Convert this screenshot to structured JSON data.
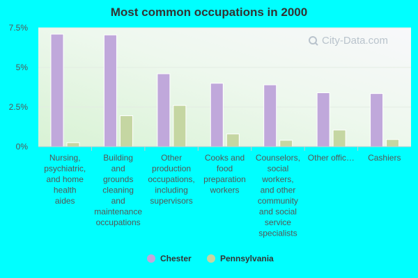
{
  "chart_data": {
    "type": "bar",
    "title": "Most common occupations in 2000",
    "xlabel": "",
    "ylabel": "",
    "ylim": [
      0,
      7.5
    ],
    "yticks": [
      "0%",
      "2.5%",
      "5%",
      "7.5%"
    ],
    "grid": true,
    "legend_position": "bottom",
    "categories": [
      [
        "Nursing,",
        "psychiatric,",
        "and home",
        "health",
        "aides"
      ],
      [
        "Building",
        "and",
        "grounds",
        "cleaning",
        "and",
        "maintenance",
        "occupations"
      ],
      [
        "Other",
        "production",
        "occupations,",
        "including",
        "supervisors"
      ],
      [
        "Cooks and",
        "food",
        "preparation",
        "workers"
      ],
      [
        "Counselors,",
        "social",
        "workers,",
        "and other",
        "community",
        "and social",
        "service",
        "specialists"
      ],
      [
        "Other offic…"
      ],
      [
        "Cashiers"
      ]
    ],
    "series": [
      {
        "name": "Chester",
        "color": "#c0a8db",
        "values": [
          7.1,
          7.05,
          4.6,
          4.0,
          3.9,
          3.4,
          3.35
        ]
      },
      {
        "name": "Pennsylvania",
        "color": "#c5d6a2",
        "values": [
          0.25,
          1.95,
          2.6,
          0.8,
          0.4,
          1.05,
          0.45
        ]
      }
    ]
  },
  "watermark": "City-Data.com",
  "watermark_icon": "search-icon"
}
